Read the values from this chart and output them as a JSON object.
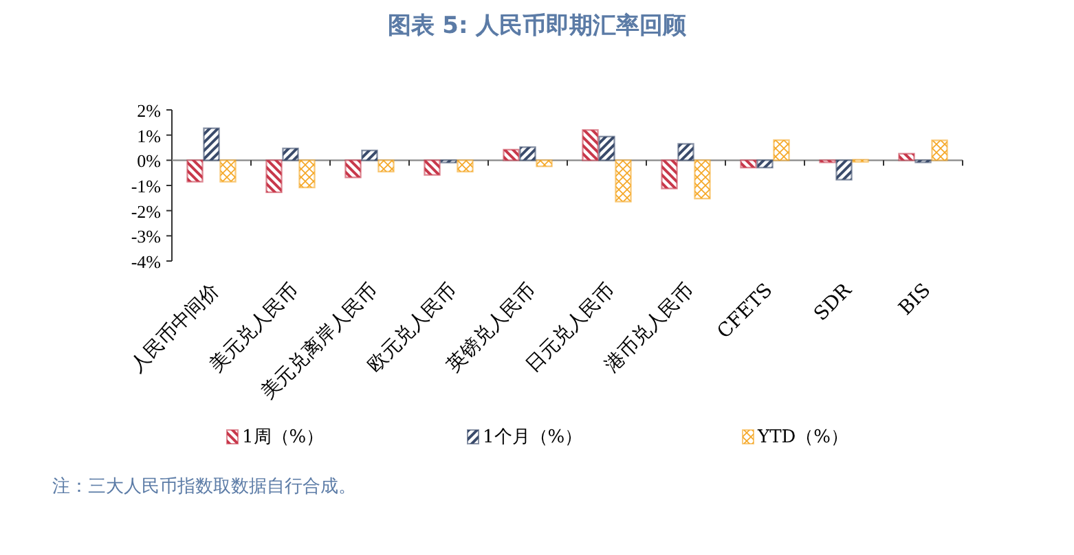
{
  "chart_data": {
    "type": "bar",
    "title": "图表 5:  人民币即期汇率回顾",
    "categories": [
      "人民币中间价",
      "美元兑人民币",
      "美元兑离岸人民币",
      "欧元兑人民币",
      "英镑兑人民币",
      "日元兑人民币",
      "港币兑人民币",
      "CFETS",
      "SDR",
      "BIS"
    ],
    "series": [
      {
        "name": "1周（%）",
        "color": "#c8384b",
        "values": [
          -0.85,
          -1.27,
          -0.68,
          -0.58,
          0.42,
          1.2,
          -1.12,
          -0.29,
          0,
          0.26
        ]
      },
      {
        "name": "1个月（%）",
        "color": "#3a4b6b",
        "values": [
          1.27,
          0.47,
          0.39,
          -0.09,
          0.52,
          0.94,
          0.65,
          -0.29,
          -0.77,
          -0.06
        ]
      },
      {
        "name": "YTD（%）",
        "color": "#f5a623",
        "values": [
          -0.85,
          -1.08,
          -0.45,
          -0.45,
          -0.24,
          -1.64,
          -1.52,
          0.8,
          0.02,
          0.79
        ]
      }
    ],
    "ylim": [
      -4,
      2
    ],
    "yticks": [
      {
        "value": 2,
        "label": "2%"
      },
      {
        "value": 1,
        "label": "1%"
      },
      {
        "value": 0,
        "label": "0%"
      },
      {
        "value": -1,
        "label": "-1%"
      },
      {
        "value": -2,
        "label": "-2%"
      },
      {
        "value": -3,
        "label": "-3%"
      },
      {
        "value": -4,
        "label": "-4%"
      }
    ],
    "legend": "bottom",
    "annotations": [
      "注：三大人民币指数取数据自行合成。"
    ]
  }
}
